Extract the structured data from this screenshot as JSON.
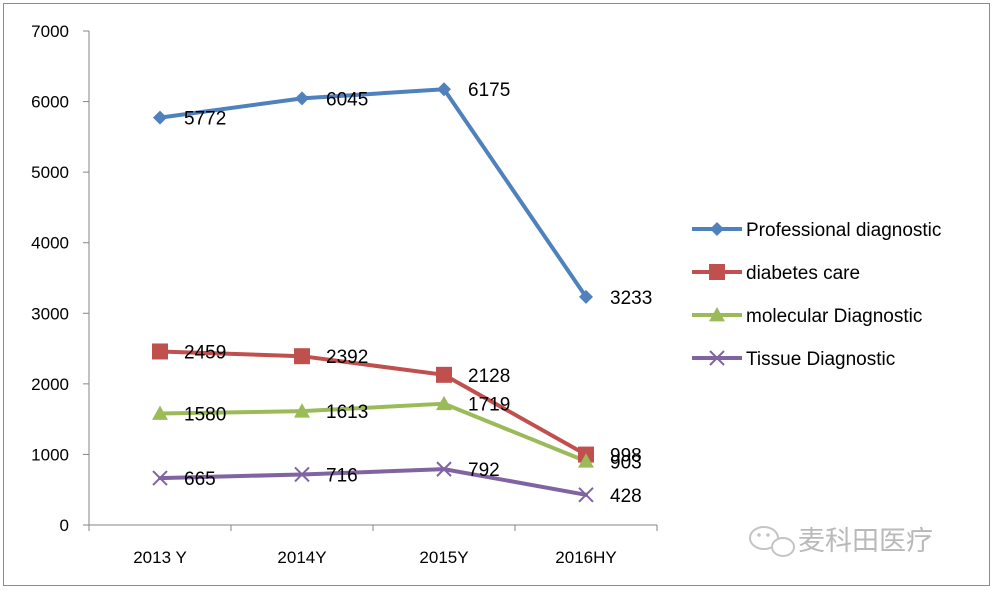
{
  "chart_data": {
    "type": "line",
    "title": "",
    "xlabel": "",
    "ylabel": "",
    "categories": [
      "2013 Y",
      "2014Y",
      "2015Y",
      "2016HY"
    ],
    "ylim": [
      0,
      7000
    ],
    "yticks": [
      0,
      1000,
      2000,
      3000,
      4000,
      5000,
      6000,
      7000
    ],
    "grid": false,
    "legend_position": "right",
    "series": [
      {
        "name": "Professional diagnostic",
        "values": [
          5772,
          6045,
          6175,
          3233
        ],
        "color": "#4f81bd",
        "marker": "diamond"
      },
      {
        "name": "diabetes care",
        "values": [
          2459,
          2392,
          2128,
          998
        ],
        "color": "#c0504d",
        "marker": "square"
      },
      {
        "name": "molecular Diagnostic",
        "values": [
          1580,
          1613,
          1719,
          903
        ],
        "color": "#9bbb59",
        "marker": "triangle"
      },
      {
        "name": "Tissue Diagnostic",
        "values": [
          665,
          716,
          792,
          428
        ],
        "color": "#8064a2",
        "marker": "x"
      }
    ]
  },
  "watermark": {
    "text": "麦科田医疗",
    "icon": "wechat-icon"
  }
}
